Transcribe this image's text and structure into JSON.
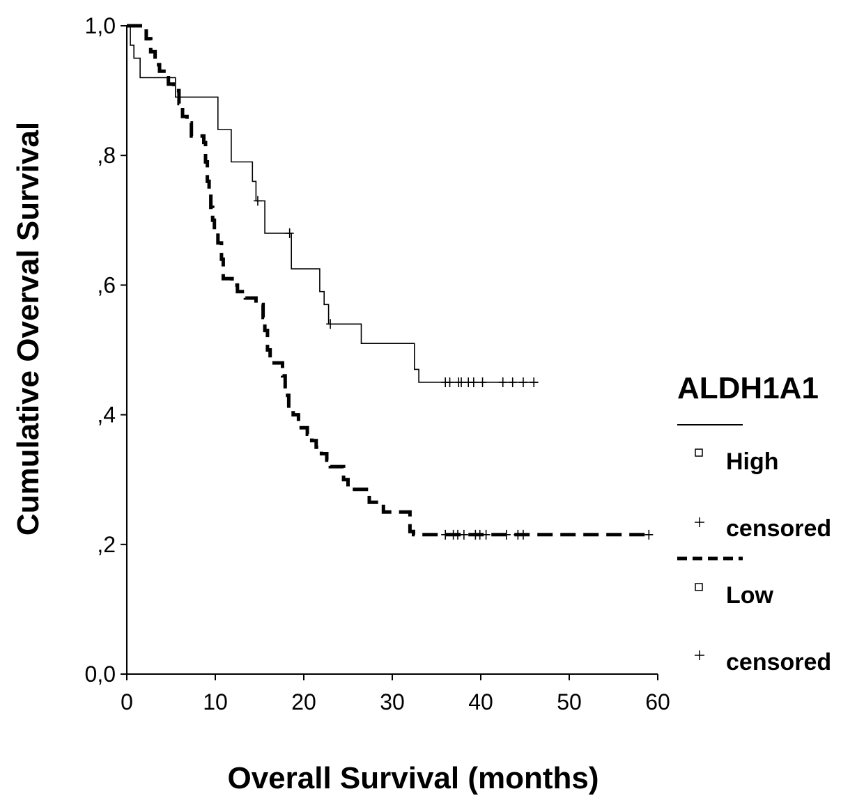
{
  "chart_data": {
    "type": "line",
    "title": "",
    "xlabel": "Overall Survival (months)",
    "ylabel": "Cumulative Overval Survival",
    "xlim": [
      0,
      60
    ],
    "ylim": [
      0,
      1
    ],
    "x_ticks": [
      0,
      10,
      20,
      30,
      40,
      50,
      60
    ],
    "x_tick_labels": [
      "0",
      "10",
      "20",
      "30",
      "40",
      "50",
      "60"
    ],
    "y_ticks": [
      0,
      0.2,
      0.4,
      0.6,
      0.8,
      1.0
    ],
    "y_tick_labels": [
      "0,0",
      ",2",
      ",4",
      ",6",
      ",8",
      "1,0"
    ],
    "grid": false,
    "legend": {
      "title": "ALDH1A1",
      "placement": "right",
      "entries": [
        "High",
        "censored",
        "Low",
        "censored"
      ]
    },
    "series": [
      {
        "name": "High",
        "style": "solid",
        "color": "#000000",
        "steps": [
          [
            0,
            1.0
          ],
          [
            0.4,
            0.97
          ],
          [
            0.8,
            0.95
          ],
          [
            1.5,
            0.92
          ],
          [
            5.5,
            0.89
          ],
          [
            10.3,
            0.84
          ],
          [
            11.8,
            0.79
          ],
          [
            14.2,
            0.76
          ],
          [
            14.6,
            0.73
          ],
          [
            15.6,
            0.68
          ],
          [
            18.6,
            0.625
          ],
          [
            21.8,
            0.59
          ],
          [
            22.3,
            0.57
          ],
          [
            22.8,
            0.54
          ],
          [
            26.5,
            0.51
          ],
          [
            32.5,
            0.47
          ],
          [
            33.0,
            0.45
          ],
          [
            46.5,
            0.45
          ]
        ],
        "censored": [
          14.8,
          18.4,
          23.0,
          36.0,
          36.5,
          37.5,
          37.8,
          38.6,
          39.2,
          40.2,
          42.5,
          43.6,
          44.8,
          46.0
        ]
      },
      {
        "name": "Low",
        "style": "dashed",
        "color": "#000000",
        "steps": [
          [
            0,
            1.0
          ],
          [
            2.2,
            0.98
          ],
          [
            2.7,
            0.96
          ],
          [
            3.2,
            0.94
          ],
          [
            3.7,
            0.93
          ],
          [
            4.2,
            0.92
          ],
          [
            4.7,
            0.91
          ],
          [
            5.3,
            0.9
          ],
          [
            5.9,
            0.88
          ],
          [
            6.3,
            0.86
          ],
          [
            6.8,
            0.85
          ],
          [
            7.3,
            0.83
          ],
          [
            8.7,
            0.82
          ],
          [
            8.9,
            0.79
          ],
          [
            9.1,
            0.76
          ],
          [
            9.3,
            0.74
          ],
          [
            9.5,
            0.72
          ],
          [
            9.7,
            0.7
          ],
          [
            9.9,
            0.68
          ],
          [
            10.3,
            0.665
          ],
          [
            10.7,
            0.64
          ],
          [
            10.9,
            0.61
          ],
          [
            11.9,
            0.6
          ],
          [
            12.5,
            0.59
          ],
          [
            13.4,
            0.58
          ],
          [
            14.6,
            0.57
          ],
          [
            15.4,
            0.55
          ],
          [
            15.6,
            0.53
          ],
          [
            15.9,
            0.5
          ],
          [
            16.2,
            0.48
          ],
          [
            17.6,
            0.46
          ],
          [
            17.9,
            0.43
          ],
          [
            18.3,
            0.41
          ],
          [
            18.8,
            0.4
          ],
          [
            19.4,
            0.38
          ],
          [
            20.4,
            0.37
          ],
          [
            20.9,
            0.36
          ],
          [
            21.4,
            0.35
          ],
          [
            22.0,
            0.34
          ],
          [
            22.6,
            0.33
          ],
          [
            23.0,
            0.32
          ],
          [
            24.5,
            0.3
          ],
          [
            25.0,
            0.285
          ],
          [
            27.4,
            0.265
          ],
          [
            29.0,
            0.25
          ],
          [
            32.0,
            0.22
          ],
          [
            32.4,
            0.215
          ],
          [
            59.0,
            0.215
          ]
        ],
        "censored": [
          36.0,
          36.9,
          37.4,
          38.1,
          39.4,
          39.9,
          40.6,
          42.9,
          44.2,
          44.8,
          59.0
        ]
      }
    ]
  }
}
